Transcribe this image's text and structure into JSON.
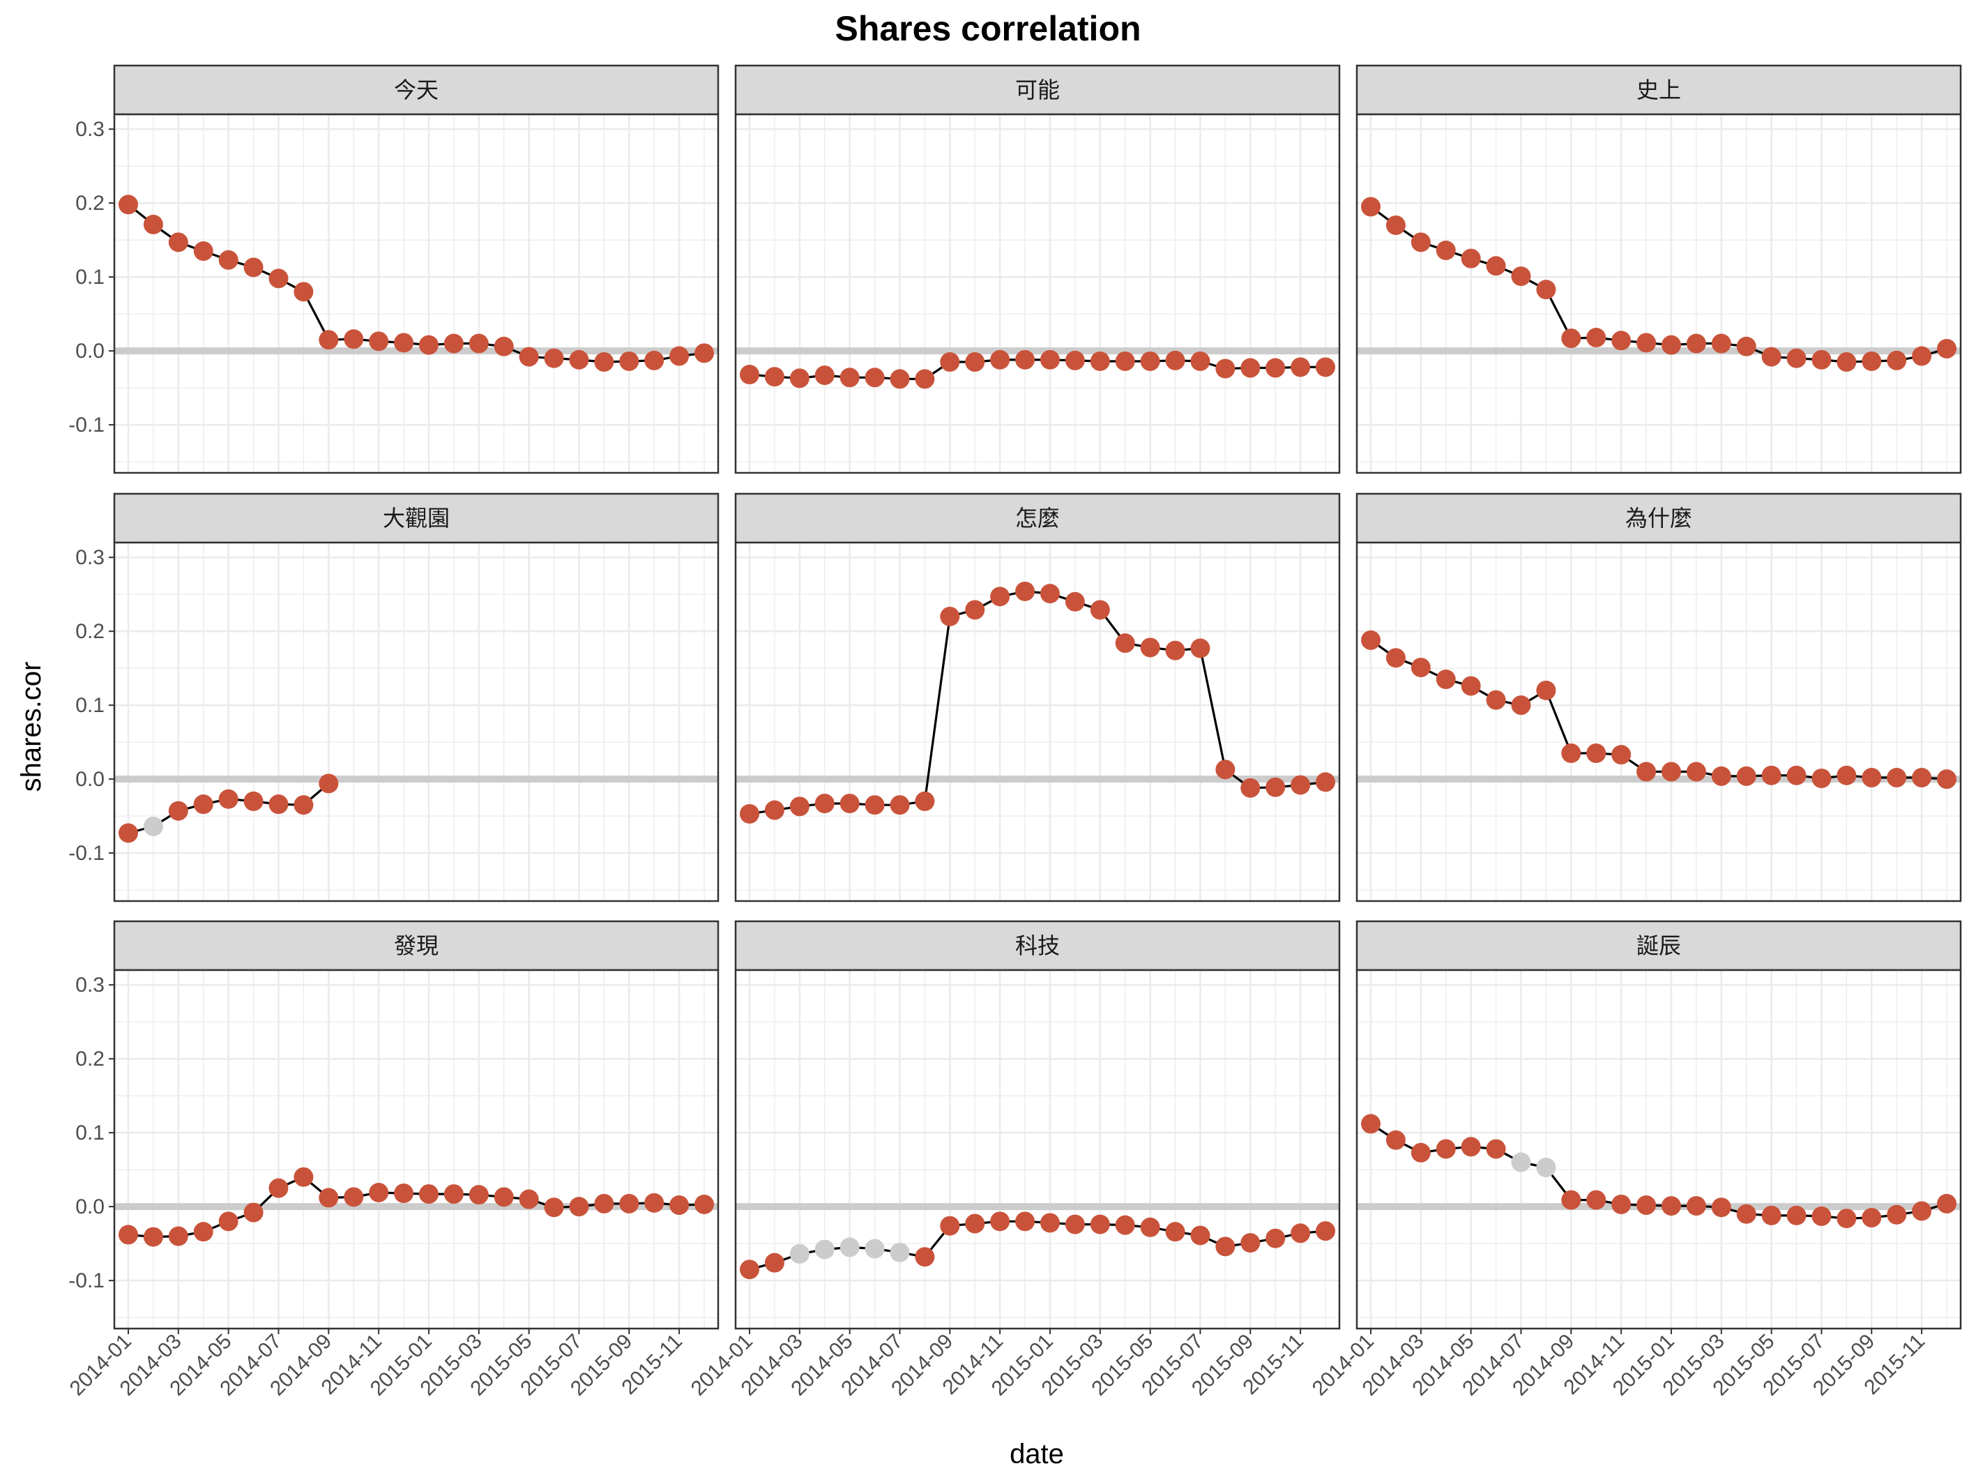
{
  "title": "Shares correlation",
  "colors": {
    "significant_point": "#C9533A",
    "nonsignificant_point": "#CCCCCC",
    "line": "#000000",
    "zero_line": "#CCCCCC",
    "strip_fill": "#D9D9D9",
    "panel_border": "#333333",
    "grid": "#EBEBEB"
  },
  "chart_data": {
    "type": "line",
    "layout": "facet-grid-3x3",
    "title": "Shares correlation",
    "xlabel": "date",
    "ylabel": "shares.cor",
    "ylim": [
      -0.165,
      0.32
    ],
    "yticks": [
      0.3,
      0.2,
      0.1,
      0.0,
      -0.1
    ],
    "ytick_labels": [
      "0.3",
      "0.2",
      "0.1",
      "0.0",
      "-0.1"
    ],
    "xtick_labels": [
      "2014-01",
      "2014-03",
      "2014-05",
      "2014-07",
      "2014-09",
      "2014-11",
      "2015-01",
      "2015-03",
      "2015-05",
      "2015-07",
      "2015-09",
      "2015-11"
    ],
    "xtick_month_index": [
      0,
      2,
      4,
      6,
      8,
      10,
      12,
      14,
      16,
      18,
      20,
      22
    ],
    "x_dates": [
      "2014-01",
      "2014-02",
      "2014-03",
      "2014-04",
      "2014-05",
      "2014-06",
      "2014-07",
      "2014-08",
      "2014-09",
      "2014-10",
      "2014-11",
      "2014-12",
      "2015-01",
      "2015-02",
      "2015-03",
      "2015-04",
      "2015-05",
      "2015-06",
      "2015-07",
      "2015-08",
      "2015-09",
      "2015-10",
      "2015-11",
      "2015-12"
    ],
    "reference_line_y": 0,
    "grid": true,
    "panels": [
      {
        "name": "今天",
        "values": [
          0.198,
          0.171,
          0.147,
          0.135,
          0.123,
          0.113,
          0.098,
          0.08,
          0.015,
          0.016,
          0.013,
          0.011,
          0.008,
          0.01,
          0.01,
          0.006,
          -0.008,
          -0.01,
          -0.012,
          -0.015,
          -0.014,
          -0.013,
          -0.007,
          -0.003
        ],
        "significant": [
          true,
          true,
          true,
          true,
          true,
          true,
          true,
          true,
          true,
          true,
          true,
          true,
          true,
          true,
          true,
          true,
          true,
          true,
          true,
          true,
          true,
          true,
          true,
          true
        ]
      },
      {
        "name": "可能",
        "values": [
          -0.032,
          -0.035,
          -0.037,
          -0.033,
          -0.036,
          -0.036,
          -0.038,
          -0.038,
          -0.015,
          -0.015,
          -0.012,
          -0.012,
          -0.012,
          -0.013,
          -0.014,
          -0.014,
          -0.014,
          -0.013,
          -0.014,
          -0.024,
          -0.023,
          -0.023,
          -0.022,
          -0.022
        ],
        "significant": [
          true,
          true,
          true,
          true,
          true,
          true,
          true,
          true,
          true,
          true,
          true,
          true,
          true,
          true,
          true,
          true,
          true,
          true,
          true,
          true,
          true,
          true,
          true,
          true
        ]
      },
      {
        "name": "史上",
        "values": [
          0.195,
          0.17,
          0.147,
          0.136,
          0.125,
          0.115,
          0.101,
          0.083,
          0.017,
          0.018,
          0.014,
          0.011,
          0.008,
          0.01,
          0.01,
          0.006,
          -0.008,
          -0.01,
          -0.012,
          -0.015,
          -0.014,
          -0.013,
          -0.007,
          0.003
        ],
        "significant": [
          true,
          true,
          true,
          true,
          true,
          true,
          true,
          true,
          true,
          true,
          true,
          true,
          true,
          true,
          true,
          true,
          true,
          true,
          true,
          true,
          true,
          true,
          true,
          true
        ]
      },
      {
        "name": "大觀園",
        "values": [
          -0.073,
          -0.064,
          -0.043,
          -0.034,
          -0.027,
          -0.03,
          -0.034,
          -0.035,
          -0.006,
          null,
          null,
          null,
          null,
          null,
          null,
          null,
          null,
          null,
          null,
          null,
          null,
          null,
          null,
          null
        ],
        "significant": [
          true,
          false,
          true,
          true,
          true,
          true,
          true,
          true,
          true,
          false,
          false,
          false,
          false,
          false,
          false,
          false,
          false,
          false,
          false,
          false,
          false,
          false,
          false,
          false
        ]
      },
      {
        "name": "怎麼",
        "values": [
          -0.047,
          -0.042,
          -0.037,
          -0.033,
          -0.033,
          -0.035,
          -0.035,
          -0.03,
          0.22,
          0.229,
          0.247,
          0.254,
          0.251,
          0.24,
          0.229,
          0.184,
          0.178,
          0.174,
          0.177,
          0.013,
          -0.012,
          -0.011,
          -0.008,
          -0.004
        ],
        "significant": [
          true,
          true,
          true,
          true,
          true,
          true,
          true,
          true,
          true,
          true,
          true,
          true,
          true,
          true,
          true,
          true,
          true,
          true,
          true,
          true,
          true,
          true,
          true,
          true
        ]
      },
      {
        "name": "為什麼",
        "values": [
          0.188,
          0.164,
          0.151,
          0.135,
          0.126,
          0.107,
          0.1,
          0.12,
          0.035,
          0.035,
          0.033,
          0.01,
          0.01,
          0.01,
          0.004,
          0.004,
          0.005,
          0.005,
          0.001,
          0.005,
          0.002,
          0.002,
          0.002,
          0.0
        ],
        "significant": [
          true,
          true,
          true,
          true,
          true,
          true,
          true,
          true,
          true,
          true,
          true,
          true,
          true,
          true,
          true,
          true,
          true,
          true,
          true,
          true,
          true,
          true,
          true,
          true
        ]
      },
      {
        "name": "發現",
        "values": [
          -0.038,
          -0.041,
          -0.04,
          -0.034,
          -0.02,
          -0.008,
          0.025,
          0.04,
          0.012,
          0.013,
          0.019,
          0.018,
          0.017,
          0.017,
          0.016,
          0.013,
          0.01,
          -0.001,
          0.0,
          0.004,
          0.004,
          0.005,
          0.002,
          0.003
        ],
        "significant": [
          true,
          true,
          true,
          true,
          true,
          true,
          true,
          true,
          true,
          true,
          true,
          true,
          true,
          true,
          true,
          true,
          true,
          true,
          true,
          true,
          true,
          true,
          true,
          true
        ]
      },
      {
        "name": "科技",
        "values": [
          -0.085,
          -0.076,
          -0.064,
          -0.058,
          -0.055,
          -0.057,
          -0.062,
          -0.068,
          -0.026,
          -0.023,
          -0.02,
          -0.02,
          -0.022,
          -0.024,
          -0.024,
          -0.025,
          -0.028,
          -0.034,
          -0.039,
          -0.054,
          -0.049,
          -0.043,
          -0.036,
          -0.033
        ],
        "significant": [
          true,
          true,
          false,
          false,
          false,
          false,
          false,
          true,
          true,
          true,
          true,
          true,
          true,
          true,
          true,
          true,
          true,
          true,
          true,
          true,
          true,
          true,
          true,
          true
        ]
      },
      {
        "name": "誕辰",
        "values": [
          0.112,
          0.09,
          0.073,
          0.078,
          0.081,
          0.078,
          0.06,
          0.053,
          0.009,
          0.009,
          0.003,
          0.002,
          0.001,
          0.001,
          -0.001,
          -0.01,
          -0.012,
          -0.012,
          -0.013,
          -0.016,
          -0.015,
          -0.011,
          -0.006,
          0.004
        ],
        "significant": [
          true,
          true,
          true,
          true,
          true,
          true,
          false,
          false,
          true,
          true,
          true,
          true,
          true,
          true,
          true,
          true,
          true,
          true,
          true,
          true,
          true,
          true,
          true,
          true
        ]
      }
    ]
  }
}
